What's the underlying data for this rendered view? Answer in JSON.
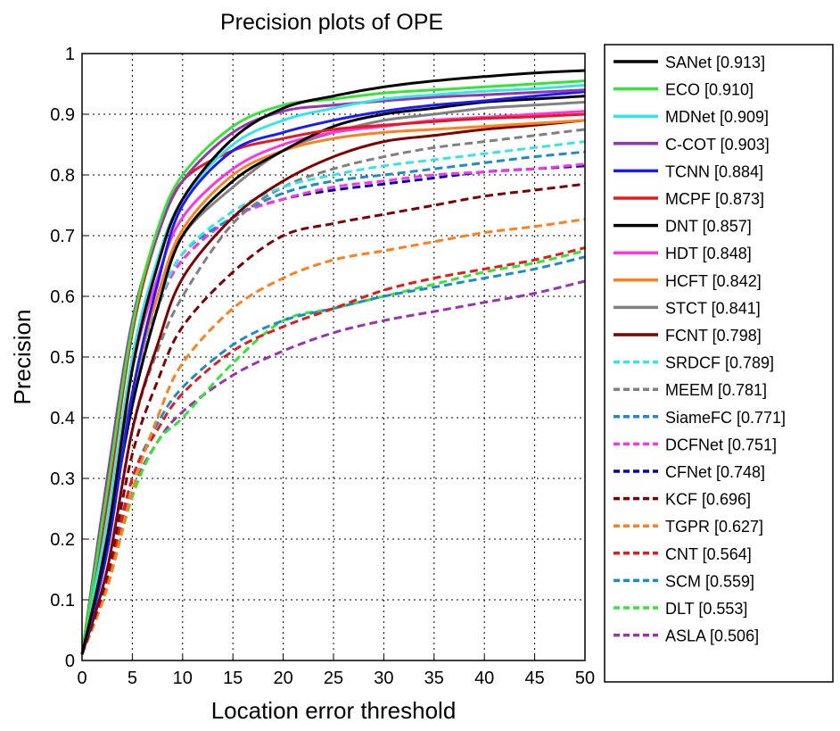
{
  "chart_data": {
    "type": "line",
    "title": "Precision plots of OPE",
    "xlabel": "Location error threshold",
    "ylabel": "Precision",
    "xlim": [
      0,
      50
    ],
    "ylim": [
      0,
      1
    ],
    "xticks": [
      "0",
      "5",
      "10",
      "15",
      "20",
      "25",
      "30",
      "35",
      "40",
      "45",
      "50"
    ],
    "yticks": [
      "0",
      "0.1",
      "0.2",
      "0.3",
      "0.4",
      "0.5",
      "0.6",
      "0.7",
      "0.8",
      "0.9",
      "1"
    ],
    "grid": true,
    "legend_position": "outside-right",
    "x": [
      0,
      2.5,
      5,
      7.5,
      10,
      15,
      20,
      25,
      30,
      35,
      40,
      45,
      50
    ],
    "series": [
      {
        "name": "SANet",
        "score": "0.913",
        "legend": "SANet [0.913]",
        "color": "#000000",
        "dashed": false,
        "values": [
          0.01,
          0.2,
          0.48,
          0.65,
          0.76,
          0.86,
          0.91,
          0.93,
          0.945,
          0.955,
          0.962,
          0.968,
          0.972
        ]
      },
      {
        "name": "ECO",
        "score": "0.910",
        "legend": "ECO [0.910]",
        "color": "#33e633",
        "dashed": false,
        "values": [
          0.01,
          0.28,
          0.55,
          0.71,
          0.8,
          0.88,
          0.915,
          0.925,
          0.935,
          0.94,
          0.945,
          0.95,
          0.955
        ]
      },
      {
        "name": "MDNet",
        "score": "0.909",
        "legend": "MDNet [0.909]",
        "color": "#33e6e6",
        "dashed": false,
        "values": [
          0.01,
          0.23,
          0.5,
          0.66,
          0.76,
          0.85,
          0.89,
          0.91,
          0.925,
          0.932,
          0.938,
          0.942,
          0.948
        ]
      },
      {
        "name": "C-COT",
        "score": "0.903",
        "legend": "C-COT [0.903]",
        "color": "#9933b3",
        "dashed": false,
        "values": [
          0.01,
          0.3,
          0.56,
          0.7,
          0.79,
          0.87,
          0.905,
          0.915,
          0.922,
          0.928,
          0.932,
          0.936,
          0.94
        ]
      },
      {
        "name": "TCNN",
        "score": "0.884",
        "legend": "TCNN [0.884]",
        "color": "#1a1aff",
        "dashed": false,
        "values": [
          0.01,
          0.18,
          0.44,
          0.62,
          0.75,
          0.84,
          0.87,
          0.89,
          0.905,
          0.915,
          0.922,
          0.93,
          0.937
        ]
      },
      {
        "name": "MCPF",
        "score": "0.873",
        "legend": "MCPF [0.873]",
        "color": "#e61a1a",
        "dashed": false,
        "values": [
          0.01,
          0.26,
          0.54,
          0.7,
          0.79,
          0.84,
          0.86,
          0.875,
          0.882,
          0.888,
          0.893,
          0.896,
          0.9
        ]
      },
      {
        "name": "DNT",
        "score": "0.857",
        "legend": "DNT [0.857]",
        "color": "#000000",
        "dashed": false,
        "values": [
          0.01,
          0.2,
          0.42,
          0.58,
          0.7,
          0.79,
          0.84,
          0.88,
          0.9,
          0.91,
          0.92,
          0.925,
          0.93
        ]
      },
      {
        "name": "HDT",
        "score": "0.848",
        "legend": "HDT [0.848]",
        "color": "#ff33e6",
        "dashed": false,
        "values": [
          0.01,
          0.22,
          0.48,
          0.63,
          0.73,
          0.81,
          0.85,
          0.87,
          0.88,
          0.89,
          0.895,
          0.9,
          0.905
        ]
      },
      {
        "name": "HCFT",
        "score": "0.842",
        "legend": "HCFT [0.842]",
        "color": "#ff7f1a",
        "dashed": false,
        "values": [
          0.01,
          0.18,
          0.44,
          0.6,
          0.71,
          0.8,
          0.84,
          0.86,
          0.87,
          0.875,
          0.88,
          0.885,
          0.89
        ]
      },
      {
        "name": "STCT",
        "score": "0.841",
        "legend": "STCT [0.841]",
        "color": "#808080",
        "dashed": false,
        "values": [
          0.01,
          0.22,
          0.44,
          0.6,
          0.7,
          0.78,
          0.84,
          0.87,
          0.89,
          0.9,
          0.91,
          0.915,
          0.92
        ]
      },
      {
        "name": "FCNT",
        "score": "0.798",
        "legend": "FCNT [0.798]",
        "color": "#800000",
        "dashed": false,
        "values": [
          0.01,
          0.15,
          0.38,
          0.52,
          0.63,
          0.73,
          0.79,
          0.83,
          0.855,
          0.865,
          0.875,
          0.882,
          0.89
        ]
      },
      {
        "name": "SRDCF",
        "score": "0.789",
        "legend": "SRDCF [0.789]",
        "color": "#33e6e6",
        "dashed": true,
        "values": [
          0.01,
          0.2,
          0.44,
          0.58,
          0.67,
          0.74,
          0.78,
          0.8,
          0.815,
          0.825,
          0.835,
          0.845,
          0.855
        ]
      },
      {
        "name": "MEEM",
        "score": "0.781",
        "legend": "MEEM [0.781]",
        "color": "#808080",
        "dashed": true,
        "values": [
          0.01,
          0.15,
          0.38,
          0.51,
          0.6,
          0.72,
          0.78,
          0.81,
          0.83,
          0.845,
          0.855,
          0.865,
          0.875
        ]
      },
      {
        "name": "SiameFC",
        "score": "0.771",
        "legend": "SiameFC [0.771]",
        "color": "#1a8ccc",
        "dashed": true,
        "values": [
          0.01,
          0.2,
          0.44,
          0.58,
          0.67,
          0.73,
          0.77,
          0.79,
          0.8,
          0.81,
          0.82,
          0.83,
          0.838
        ]
      },
      {
        "name": "DCFNet",
        "score": "0.751",
        "legend": "DCFNet [0.751]",
        "color": "#ff33e6",
        "dashed": true,
        "values": [
          0.01,
          0.2,
          0.44,
          0.58,
          0.66,
          0.73,
          0.76,
          0.78,
          0.79,
          0.8,
          0.805,
          0.81,
          0.818
        ]
      },
      {
        "name": "CFNet",
        "score": "0.748",
        "legend": "CFNet [0.748]",
        "color": "#0000b3",
        "dashed": true,
        "values": [
          0.01,
          0.2,
          0.44,
          0.58,
          0.66,
          0.73,
          0.76,
          0.775,
          0.785,
          0.795,
          0.805,
          0.81,
          0.815
        ]
      },
      {
        "name": "KCF",
        "score": "0.696",
        "legend": "KCF [0.696]",
        "color": "#800000",
        "dashed": true,
        "values": [
          0.01,
          0.14,
          0.34,
          0.46,
          0.55,
          0.64,
          0.7,
          0.72,
          0.735,
          0.75,
          0.765,
          0.775,
          0.785
        ]
      },
      {
        "name": "TGPR",
        "score": "0.627",
        "legend": "TGPR [0.627]",
        "color": "#ff7f1a",
        "dashed": true,
        "values": [
          0.01,
          0.12,
          0.28,
          0.4,
          0.49,
          0.58,
          0.63,
          0.66,
          0.675,
          0.69,
          0.705,
          0.715,
          0.727
        ]
      },
      {
        "name": "CNT",
        "score": "0.564",
        "legend": "CNT [0.564]",
        "color": "#e61a1a",
        "dashed": true,
        "values": [
          0.01,
          0.13,
          0.3,
          0.38,
          0.44,
          0.51,
          0.55,
          0.58,
          0.61,
          0.63,
          0.645,
          0.66,
          0.68
        ]
      },
      {
        "name": "SCM",
        "score": "0.559",
        "legend": "SCM [0.559]",
        "color": "#1a8ccc",
        "dashed": true,
        "values": [
          0.01,
          0.14,
          0.3,
          0.39,
          0.45,
          0.52,
          0.56,
          0.58,
          0.6,
          0.615,
          0.63,
          0.645,
          0.665
        ]
      },
      {
        "name": "DLT",
        "score": "0.553",
        "legend": "DLT [0.553]",
        "color": "#33e633",
        "dashed": true,
        "values": [
          0.01,
          0.12,
          0.27,
          0.36,
          0.4,
          0.49,
          0.56,
          0.58,
          0.6,
          0.62,
          0.64,
          0.655,
          0.675
        ]
      },
      {
        "name": "ASLA",
        "score": "0.506",
        "legend": "ASLA [0.506]",
        "color": "#9933b3",
        "dashed": true,
        "values": [
          0.01,
          0.13,
          0.28,
          0.36,
          0.41,
          0.47,
          0.51,
          0.54,
          0.56,
          0.575,
          0.59,
          0.605,
          0.625
        ]
      }
    ]
  }
}
